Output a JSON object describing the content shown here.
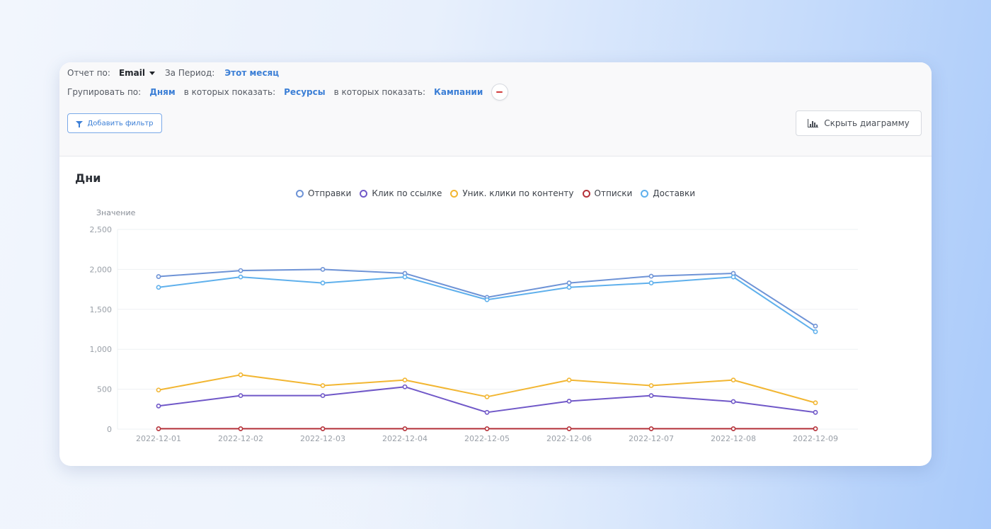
{
  "report": {
    "by_label": "Отчет по:",
    "by_value": "Email",
    "period_label": "За Период:",
    "period_value": "Этот месяц",
    "group_label": "Групировать по:",
    "group_value": "Дням",
    "show1_label": "в которых показать:",
    "show1_value": "Ресурсы",
    "show2_label": "в которых показать:",
    "show2_value": "Кампании"
  },
  "buttons": {
    "add_filter": "Добавить фильтр",
    "hide_chart": "Скрыть диаграмму"
  },
  "icons": {
    "caret": "chevron-down-icon",
    "remove": "minus-icon",
    "filter": "filter-icon",
    "chart": "bar-chart-icon"
  },
  "chart_data": {
    "type": "line",
    "title": "Дни",
    "ylabel": "Значение",
    "xlabel": "",
    "ylim": [
      0,
      2500
    ],
    "yticks": [
      "0",
      "500",
      "1,000",
      "1,500",
      "2,000",
      "2,500"
    ],
    "grid": true,
    "legend_position": "top-center",
    "categories": [
      "2022-12-01",
      "2022-12-02",
      "2022-12-03",
      "2022-12-04",
      "2022-12-05",
      "2022-12-06",
      "2022-12-07",
      "2022-12-08",
      "2022-12-09"
    ],
    "series": [
      {
        "name": "Отправки",
        "color": "#6e93d6",
        "values": [
          1910,
          1985,
          2000,
          1950,
          1650,
          1830,
          1915,
          1950,
          1290
        ]
      },
      {
        "name": "Клик по ссылке",
        "color": "#7058c8",
        "values": [
          290,
          420,
          420,
          530,
          210,
          350,
          420,
          345,
          210
        ]
      },
      {
        "name": "Уник. клики по контенту",
        "color": "#f2b632",
        "values": [
          490,
          680,
          545,
          615,
          405,
          615,
          545,
          615,
          330
        ]
      },
      {
        "name": "Отписки",
        "color": "#b5323a",
        "values": [
          5,
          5,
          5,
          5,
          5,
          5,
          5,
          5,
          5
        ]
      },
      {
        "name": "Доставки",
        "color": "#5fb0ec",
        "values": [
          1775,
          1905,
          1830,
          1905,
          1620,
          1775,
          1830,
          1905,
          1220
        ]
      }
    ],
    "legend_order": [
      0,
      1,
      2,
      3,
      4
    ]
  }
}
